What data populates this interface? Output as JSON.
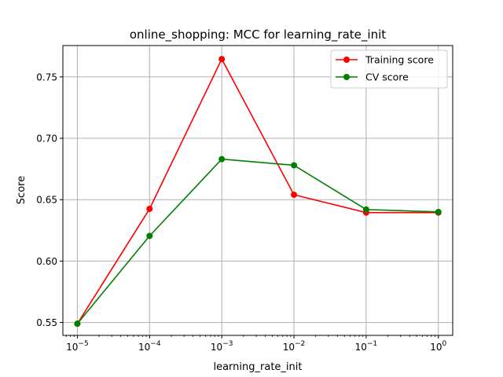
{
  "chart_data": {
    "type": "line",
    "title": "online_shopping: MCC for learning_rate_init",
    "xlabel": "learning_rate_init",
    "ylabel": "Score",
    "x_scale": "log",
    "x": [
      1e-05,
      0.0001,
      0.001,
      0.01,
      0.1,
      1
    ],
    "x_tick_labels": [
      {
        "base": "10",
        "exp": "−5"
      },
      {
        "base": "10",
        "exp": "−4"
      },
      {
        "base": "10",
        "exp": "−3"
      },
      {
        "base": "10",
        "exp": "−2"
      },
      {
        "base": "10",
        "exp": "−1"
      },
      {
        "base": "10",
        "exp": "0"
      }
    ],
    "xlim": [
      6.3e-06,
      1.58
    ],
    "ylim": [
      0.5395,
      0.7755
    ],
    "y_ticks": [
      0.55,
      0.6,
      0.65,
      0.7,
      0.75
    ],
    "y_tick_labels": [
      "0.55",
      "0.60",
      "0.65",
      "0.70",
      "0.75"
    ],
    "grid": true,
    "legend_position": "top-right",
    "series": [
      {
        "name": "Training score",
        "color": "#ff0000",
        "values": [
          0.549,
          0.6425,
          0.7645,
          0.654,
          0.6395,
          0.6395
        ]
      },
      {
        "name": "CV score",
        "color": "#008000",
        "values": [
          0.549,
          0.6205,
          0.683,
          0.678,
          0.642,
          0.64
        ]
      }
    ]
  }
}
